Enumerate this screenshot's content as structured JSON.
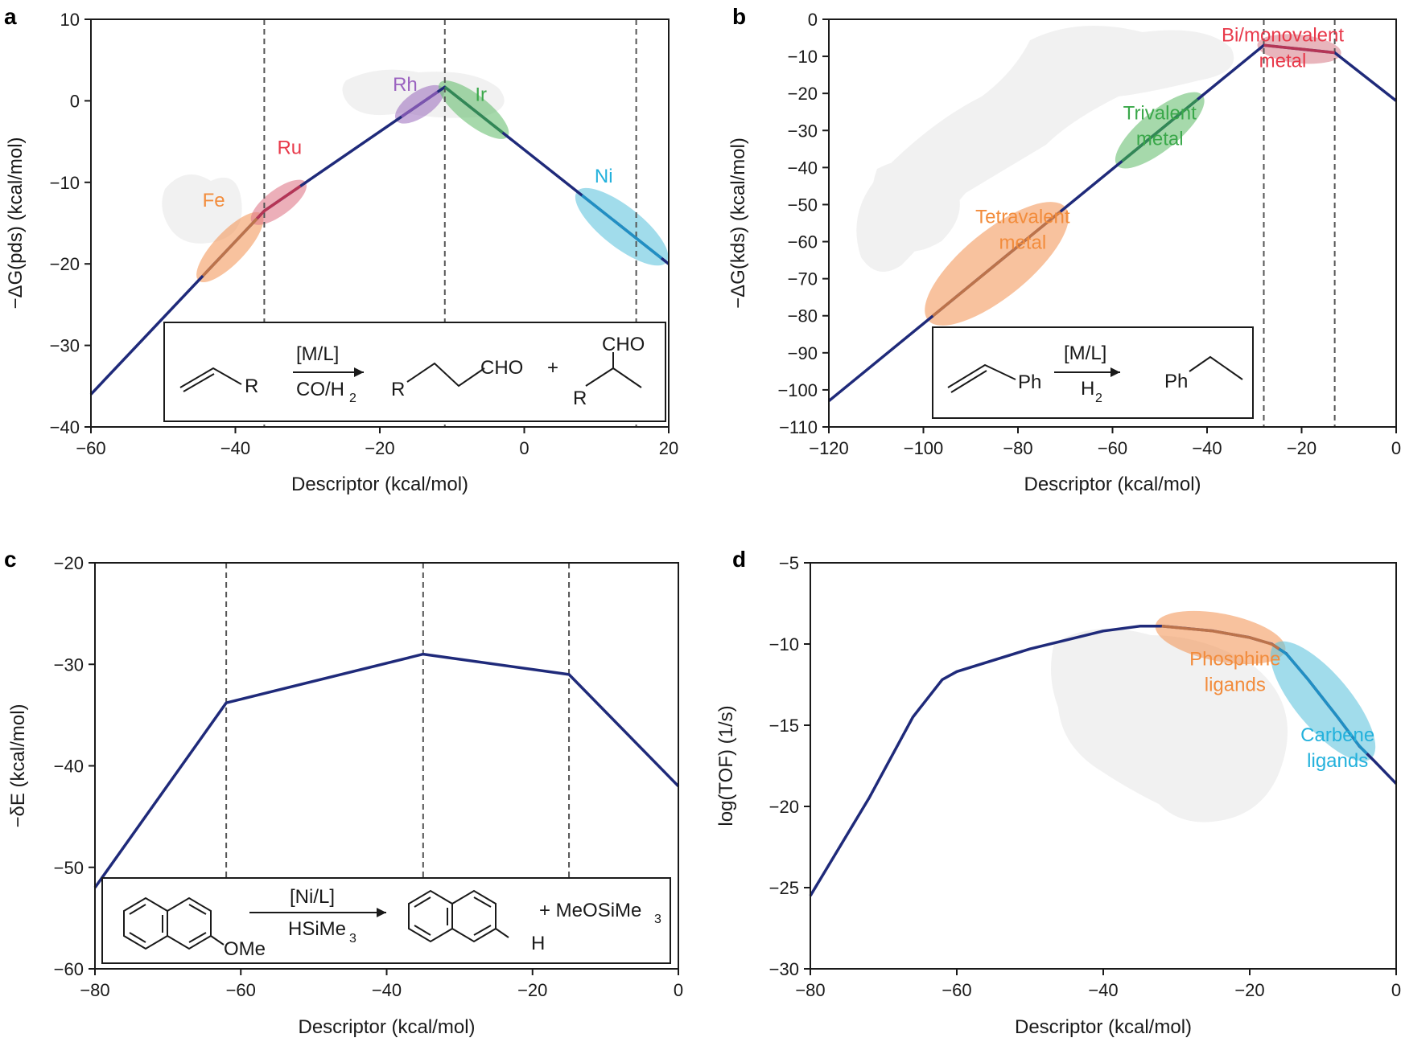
{
  "chart_data": [
    {
      "id": "a",
      "type": "line",
      "panel_label": "a",
      "xlabel": "Descriptor (kcal/mol)",
      "ylabel": "−ΔG(pds) (kcal/mol)",
      "xlim": [
        -60,
        20
      ],
      "ylim": [
        -40,
        10
      ],
      "xticks": [
        -60,
        -40,
        -20,
        0,
        20
      ],
      "xtick_labels": [
        "−60",
        "−40",
        "−20",
        "0",
        "20"
      ],
      "yticks": [
        -40,
        -30,
        -20,
        -10,
        0,
        10
      ],
      "ytick_labels": [
        "−40",
        "−30",
        "−20",
        "−10",
        "0",
        "10"
      ],
      "vlines": [
        -36,
        -11,
        15.5
      ],
      "series": [
        {
          "name": "volcano",
          "color": "#1f2a7a",
          "x": [
            -60,
            -36,
            -11,
            20
          ],
          "y": [
            -36,
            -13.5,
            1.7,
            -20
          ]
        }
      ],
      "highlights": [
        {
          "label": "Fe",
          "color": "#f39a5d",
          "text_color": "#f28c3c",
          "x_range": [
            -44.5,
            -37
          ],
          "label_pos": [
            -43,
            -13
          ]
        },
        {
          "label": "Ru",
          "color": "#e07a8a",
          "text_color": "#e8394a",
          "x_range": [
            -37,
            -31
          ],
          "label_pos": [
            -32.5,
            -6.5
          ]
        },
        {
          "label": "Rh",
          "color": "#a176c2",
          "text_color": "#9b63c0",
          "x_range": [
            -17,
            -12
          ],
          "label_pos": [
            -16.5,
            1.2
          ]
        },
        {
          "label": "Ir",
          "color": "#6bbf73",
          "text_color": "#3aa84a",
          "x_range": [
            -11,
            -3
          ],
          "label_pos": [
            -6,
            0
          ]
        },
        {
          "label": "Ni",
          "color": "#63c4de",
          "text_color": "#23b1dc",
          "x_range": [
            8,
            19
          ],
          "label_pos": [
            11,
            -10
          ]
        }
      ],
      "scheme": {
        "reagent_top": "[M/L]",
        "reagent_bottom": "CO/H",
        "reagent_bottom_sub": "2",
        "R": "R",
        "product_group": "CHO",
        "plus": "+"
      }
    },
    {
      "id": "b",
      "type": "line",
      "panel_label": "b",
      "xlabel": "Descriptor (kcal/mol)",
      "ylabel": "−ΔG(kds) (kcal/mol)",
      "xlim": [
        -120,
        0
      ],
      "ylim": [
        -110,
        0
      ],
      "xticks": [
        -120,
        -100,
        -80,
        -60,
        -40,
        -20,
        0
      ],
      "xtick_labels": [
        "−120",
        "−100",
        "−80",
        "−60",
        "−40",
        "−20",
        "0"
      ],
      "yticks": [
        -110,
        -100,
        -90,
        -80,
        -70,
        -60,
        -50,
        -40,
        -30,
        -20,
        -10,
        0
      ],
      "ytick_labels": [
        "−110",
        "−100",
        "−90",
        "−80",
        "−70",
        "−60",
        "−50",
        "−40",
        "−30",
        "−20",
        "−10",
        "0"
      ],
      "vlines": [
        -28,
        -13
      ],
      "series": [
        {
          "name": "volcano",
          "color": "#1f2a7a",
          "x": [
            -120,
            -28,
            -13,
            0
          ],
          "y": [
            -103,
            -7,
            -9,
            -22
          ]
        }
      ],
      "highlights": [
        {
          "label": "Tetravalent\nmetal",
          "color": "#f39a5d",
          "text_color": "#f28c3c",
          "x_range": [
            -98,
            -71
          ],
          "label_pos": [
            -79,
            -55
          ]
        },
        {
          "label": "Trivalent\nmetal",
          "color": "#6bbf73",
          "text_color": "#3aa84a",
          "x_range": [
            -58,
            -42
          ],
          "label_pos": [
            -50,
            -27
          ]
        },
        {
          "label": "Bi/monovalent\nmetal",
          "color": "#d9848f",
          "text_color": "#e8394a",
          "x_range": [
            -28,
            -13
          ],
          "label_pos": [
            -24,
            -6
          ]
        }
      ],
      "scheme": {
        "reagent_top": "[M/L]",
        "reagent_bottom": "H",
        "reagent_bottom_sub": "2",
        "Ph": "Ph"
      }
    },
    {
      "id": "c",
      "type": "line",
      "panel_label": "c",
      "xlabel": "Descriptor (kcal/mol)",
      "ylabel": "−δE (kcal/mol)",
      "xlim": [
        -80,
        0
      ],
      "ylim": [
        -60,
        -20
      ],
      "xticks": [
        -80,
        -60,
        -40,
        -20,
        0
      ],
      "xtick_labels": [
        "−80",
        "−60",
        "−40",
        "−20",
        "0"
      ],
      "yticks": [
        -60,
        -50,
        -40,
        -30,
        -20
      ],
      "ytick_labels": [
        "−60",
        "−50",
        "−40",
        "−30",
        "−20"
      ],
      "vlines": [
        -62,
        -35,
        -15
      ],
      "series": [
        {
          "name": "volcano",
          "color": "#1f2a7a",
          "x": [
            -80,
            -62,
            -35,
            -15,
            0
          ],
          "y": [
            -52,
            -33.8,
            -29,
            -31,
            -42
          ]
        }
      ],
      "highlights": [],
      "scheme": {
        "reagent_top": "[Ni/L]",
        "reagent_bottom": "HSiMe",
        "reagent_bottom_sub": "3",
        "OMe": "OMe",
        "H": "H",
        "byproduct": "+ MeOSiMe",
        "byproduct_sub": "3"
      }
    },
    {
      "id": "d",
      "type": "line",
      "panel_label": "d",
      "xlabel": "Descriptor (kcal/mol)",
      "ylabel": "log(TOF) (1/s)",
      "xlim": [
        -80,
        0
      ],
      "ylim": [
        -30,
        -5
      ],
      "xticks": [
        -80,
        -60,
        -40,
        -20,
        0
      ],
      "xtick_labels": [
        "−80",
        "−60",
        "−40",
        "−20",
        "0"
      ],
      "yticks": [
        -30,
        -25,
        -20,
        -15,
        -10,
        -5
      ],
      "ytick_labels": [
        "−30",
        "−25",
        "−20",
        "−15",
        "−10",
        "−5"
      ],
      "vlines": [],
      "series": [
        {
          "name": "volcano",
          "color": "#1f2a7a",
          "x": [
            -80,
            -72,
            -66,
            -62,
            -60,
            -50,
            -40,
            -35,
            -32,
            -25,
            -20,
            -17,
            -15,
            -12,
            -8,
            -5,
            -3,
            0
          ],
          "y": [
            -25.5,
            -19.5,
            -14.5,
            -12.2,
            -11.7,
            -10.3,
            -9.2,
            -8.9,
            -8.9,
            -9.2,
            -9.6,
            -10.0,
            -10.6,
            -12.2,
            -14.5,
            -16.3,
            -17.2,
            -18.6
          ]
        }
      ],
      "highlights": [
        {
          "label": "Phosphine\nligands",
          "color": "#f39a5d",
          "text_color": "#f28c3c",
          "x_range": [
            -32,
            -16
          ],
          "label_pos": [
            -22,
            -11.3
          ]
        },
        {
          "label": "Carbene\nligands",
          "color": "#63c4de",
          "text_color": "#23b1dc",
          "x_range": [
            -16,
            -4
          ],
          "label_pos": [
            -8,
            -16
          ]
        }
      ]
    }
  ]
}
